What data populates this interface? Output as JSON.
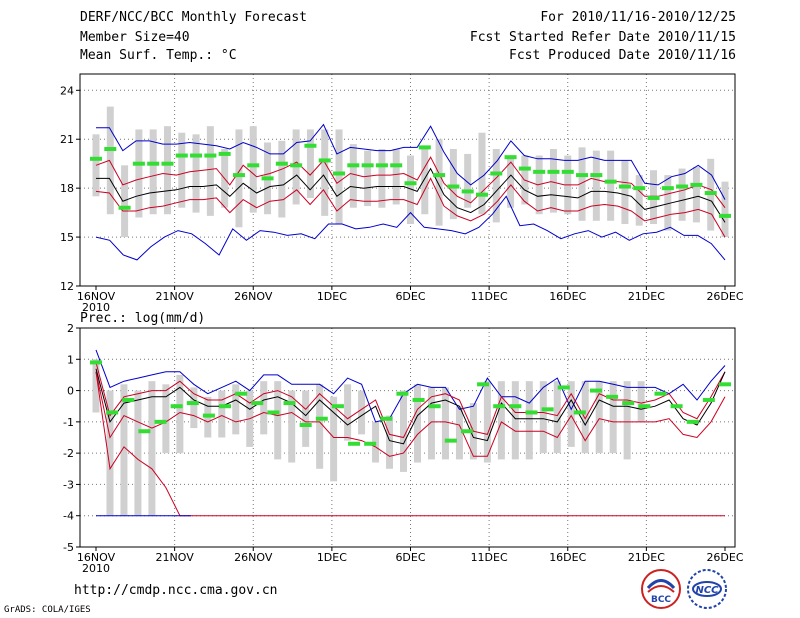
{
  "header": {
    "title": "DERF/NCC/BCC Monthly Forecast",
    "member": "Member Size=40",
    "variable": "Mean Surf. Temp.: °C",
    "period": "For 2010/11/16-2010/12/25",
    "refer": "Fcst Started Refer Date 2010/11/15",
    "produced": "Fcst Produced Date 2010/11/16"
  },
  "footer": {
    "url": "http://cmdp.ncc.cma.gov.cn",
    "credit": "GrADS: COLA/IGES",
    "logo1": "BCC",
    "logo2": "NCC"
  },
  "colors": {
    "max": "#0000cc",
    "upper": "#cc0022",
    "mean": "#000000",
    "bar": "#d0d0d0",
    "median": "#33dd33",
    "grid": "#777777"
  },
  "chart_data": [
    {
      "type": "line",
      "title": "Mean Surf. Temp.: °C",
      "ylim": [
        12,
        25
      ],
      "yticks": [
        12,
        15,
        18,
        21,
        24
      ],
      "xticks": [
        "16NOV",
        "21NOV",
        "26NOV",
        "1DEC",
        "6DEC",
        "11DEC",
        "16DEC",
        "21DEC",
        "26DEC"
      ],
      "xtick_year": "2010",
      "days": 40,
      "series": [
        {
          "name": "max",
          "values": [
            21.7,
            21.7,
            20.3,
            20.9,
            20.9,
            20.7,
            20.7,
            20.8,
            20.7,
            20.6,
            20.4,
            20.8,
            20.5,
            20.1,
            20.1,
            20.8,
            20.9,
            21.9,
            20.1,
            20.5,
            20.4,
            20.3,
            20.3,
            20.5,
            20.5,
            21.8,
            20.2,
            18.9,
            18.2,
            18.8,
            19.7,
            20.9,
            20.0,
            19.8,
            19.8,
            19.7,
            19.7,
            19.9,
            19.7,
            19.7,
            19.7,
            18.3,
            18.2,
            18.7,
            18.9,
            19.4,
            18.8,
            17.3
          ]
        },
        {
          "name": "max_member",
          "values": [
            15.0,
            14.8,
            13.9,
            13.6,
            14.4,
            15.0,
            15.4,
            15.2,
            14.6,
            13.9,
            15.5,
            14.8,
            15.4,
            15.3,
            15.1,
            15.2,
            14.9,
            15.8,
            15.8,
            15.5,
            15.6,
            15.8,
            15.6,
            16.5,
            15.6,
            15.5,
            15.4,
            15.2,
            15.6,
            16.4,
            17.5,
            15.7,
            15.8,
            15.4,
            14.9,
            15.2,
            15.4,
            15.0,
            15.3,
            14.8,
            15.2,
            15.3,
            15.6,
            15.1,
            15.1,
            14.6,
            13.6
          ]
        },
        {
          "name": "upper",
          "values": [
            19.4,
            19.7,
            18.2,
            18.5,
            18.7,
            18.9,
            18.8,
            19.0,
            19.1,
            19.2,
            18.2,
            19.4,
            18.7,
            18.9,
            19.2,
            19.6,
            18.8,
            19.7,
            18.3,
            18.9,
            18.7,
            18.8,
            18.8,
            18.9,
            18.5,
            19.9,
            18.3,
            17.5,
            17.1,
            17.9,
            18.7,
            19.6,
            18.5,
            18.2,
            18.4,
            18.2,
            18.2,
            18.6,
            18.4,
            18.4,
            18.3,
            17.5,
            17.5,
            17.7,
            17.9,
            18.2,
            17.9,
            16.8
          ]
        },
        {
          "name": "mean",
          "values": [
            18.6,
            18.6,
            17.2,
            17.5,
            17.7,
            17.8,
            17.9,
            18.1,
            18.1,
            18.2,
            17.5,
            18.3,
            17.7,
            18.1,
            18.2,
            18.8,
            17.9,
            18.8,
            17.5,
            18.1,
            18.0,
            18.1,
            18.1,
            18.1,
            17.8,
            19.2,
            17.6,
            16.8,
            16.5,
            17.0,
            17.9,
            18.8,
            17.9,
            17.5,
            17.6,
            17.5,
            17.4,
            17.8,
            17.8,
            17.7,
            17.5,
            16.7,
            16.9,
            17.1,
            17.3,
            17.5,
            17.2,
            15.9
          ]
        },
        {
          "name": "lower",
          "values": [
            17.8,
            17.7,
            16.6,
            16.6,
            16.8,
            16.9,
            17.1,
            17.3,
            17.3,
            17.4,
            16.5,
            17.3,
            16.8,
            17.2,
            17.3,
            17.9,
            17.0,
            17.9,
            16.6,
            17.3,
            17.2,
            17.2,
            17.3,
            17.3,
            17.0,
            18.6,
            16.9,
            16.3,
            16.0,
            16.4,
            17.2,
            18.2,
            17.2,
            16.6,
            16.8,
            16.6,
            16.6,
            16.9,
            17.0,
            16.9,
            16.6,
            16.0,
            16.2,
            16.4,
            16.5,
            16.7,
            16.4,
            15.0
          ]
        },
        {
          "name": "median",
          "values": [
            19.8,
            20.4,
            16.8,
            19.5,
            19.5,
            19.5,
            20.0,
            20.0,
            20.0,
            20.1,
            18.8,
            19.4,
            18.6,
            19.5,
            19.4,
            20.6,
            19.7,
            18.9,
            19.4,
            19.4,
            19.4,
            19.4,
            18.3,
            20.5,
            18.8,
            18.1,
            17.8,
            17.6,
            18.9,
            19.9,
            19.2,
            19.0,
            19.0,
            19.0,
            18.8,
            18.8,
            18.4,
            18.1,
            18.0,
            17.4,
            18.0,
            18.1,
            18.2,
            17.7,
            16.3
          ]
        },
        {
          "name": "bar_top",
          "values": [
            21.3,
            23.0,
            19.4,
            21.6,
            21.6,
            21.8,
            21.4,
            21.3,
            21.8,
            20.4,
            21.6,
            21.8,
            20.8,
            20.9,
            21.6,
            21.6,
            21.6,
            21.6,
            20.7,
            20.3,
            20.4,
            20.4,
            20.0,
            20.4,
            21.0,
            20.4,
            20.1,
            21.4,
            20.4,
            19.9,
            20.0,
            20.0,
            20.4,
            20.0,
            20.5,
            20.3,
            20.3,
            19.7,
            18.8,
            19.1,
            18.8,
            19.2,
            19.3,
            19.8,
            18.4
          ]
        },
        {
          "name": "bar_bottom",
          "values": [
            17.5,
            16.4,
            15.0,
            16.2,
            16.4,
            16.4,
            16.8,
            16.5,
            16.3,
            16.8,
            15.6,
            16.5,
            16.4,
            16.2,
            17.0,
            17.4,
            16.3,
            15.8,
            16.8,
            16.9,
            16.8,
            17.0,
            15.8,
            16.4,
            15.7,
            16.1,
            16.8,
            16.4,
            15.9,
            16.8,
            17.0,
            16.4,
            16.5,
            16.4,
            16.0,
            16.0,
            16.0,
            15.8,
            15.7,
            15.8,
            15.4,
            16.0,
            15.9,
            15.4,
            15.0
          ]
        }
      ]
    },
    {
      "type": "line",
      "title": "Prec.: log(mm/d)",
      "ylim": [
        -5,
        2
      ],
      "yticks": [
        -5,
        -4,
        -3,
        -2,
        -1,
        0,
        1,
        2
      ],
      "xticks": [
        "16NOV",
        "21NOV",
        "26NOV",
        "1DEC",
        "6DEC",
        "11DEC",
        "16DEC",
        "21DEC",
        "26DEC"
      ],
      "xtick_year": "2010",
      "days": 40,
      "series": [
        {
          "name": "max",
          "values": [
            1.3,
            0.1,
            0.3,
            0.4,
            0.5,
            0.6,
            0.6,
            0.2,
            -0.1,
            0.1,
            0.3,
            0.0,
            0.5,
            0.5,
            0.2,
            0.2,
            0.2,
            -0.1,
            0.4,
            0.2,
            -1.0,
            -0.9,
            -0.1,
            0.2,
            0.1,
            0.1,
            -0.6,
            -0.5,
            0.4,
            -0.2,
            -0.2,
            -0.4,
            0.1,
            0.4,
            -0.6,
            0.3,
            0.3,
            0.2,
            0.1,
            0.1,
            0.1,
            -0.1,
            0.2,
            -0.3,
            0.3,
            0.8
          ]
        },
        {
          "name": "mean",
          "values": [
            0.7,
            -1.0,
            -0.4,
            -0.3,
            -0.2,
            -0.2,
            0.1,
            -0.3,
            -0.5,
            -0.5,
            -0.3,
            -0.6,
            -0.3,
            -0.2,
            -0.4,
            -0.8,
            -0.3,
            -0.7,
            -1.1,
            -0.8,
            -0.5,
            -1.6,
            -1.7,
            -0.8,
            -0.4,
            -0.3,
            -0.5,
            -1.5,
            -1.6,
            -0.4,
            -0.9,
            -0.9,
            -0.9,
            -1.0,
            -0.3,
            -1.1,
            -0.3,
            -0.5,
            -0.5,
            -0.6,
            -0.5,
            -0.3,
            -0.9,
            -1.1,
            -0.4,
            0.6
          ]
        },
        {
          "name": "upper",
          "values": [
            0.9,
            -0.8,
            -0.2,
            -0.1,
            0.0,
            0.0,
            0.3,
            -0.1,
            -0.3,
            -0.3,
            -0.1,
            -0.4,
            -0.1,
            0.0,
            -0.2,
            -0.6,
            -0.1,
            -0.5,
            -0.9,
            -0.6,
            -0.3,
            -1.4,
            -1.5,
            -0.6,
            -0.2,
            -0.1,
            -0.3,
            -1.3,
            -1.4,
            -0.2,
            -0.7,
            -0.7,
            -0.7,
            -0.8,
            -0.1,
            -0.9,
            -0.1,
            -0.3,
            -0.3,
            -0.4,
            -0.3,
            -0.1,
            -0.7,
            -0.9,
            -0.2,
            0.6
          ]
        },
        {
          "name": "lower",
          "values": [
            0.6,
            -1.5,
            -0.8,
            -1.0,
            -1.2,
            -1.0,
            -0.7,
            -0.8,
            -1.0,
            -0.8,
            -1.0,
            -0.9,
            -0.7,
            -0.8,
            -0.7,
            -1.0,
            -1.0,
            -1.5,
            -1.5,
            -1.6,
            -1.8,
            -2.1,
            -2.0,
            -1.4,
            -1.0,
            -1.0,
            -1.1,
            -2.1,
            -2.1,
            -1.0,
            -1.3,
            -1.3,
            -1.3,
            -1.5,
            -0.8,
            -1.6,
            -0.9,
            -1.0,
            -1.0,
            -1.0,
            -1.0,
            -0.9,
            -1.4,
            -1.5,
            -1.0,
            -0.2
          ]
        },
        {
          "name": "min",
          "values": [
            0.6,
            -2.5,
            -1.8,
            -2.2,
            -2.5,
            -3.1,
            -4.0,
            -4.0,
            -4.0,
            -4.0,
            -4.0,
            -4.0,
            -4.0,
            -4.0,
            -4.0,
            -4.0,
            -4.0,
            -4.0,
            -4.0,
            -4.0,
            -4.0,
            -4.0,
            -4.0,
            -4.0,
            -4.0,
            -4.0,
            -4.0,
            -4.0,
            -4.0,
            -4.0,
            -4.0,
            -4.0,
            -4.0,
            -4.0,
            -4.0,
            -4.0,
            -4.0,
            -4.0,
            -4.0,
            -4.0,
            -4.0,
            -4.0,
            -4.0,
            -4.0,
            -4.0,
            -4.0
          ]
        },
        {
          "name": "floor",
          "values": [
            -4.0,
            -4.0
          ]
        },
        {
          "name": "median",
          "values": [
            0.9,
            -0.7,
            -0.3,
            -1.3,
            -1.0,
            -0.5,
            -0.4,
            -0.8,
            -0.5,
            -0.1,
            -0.4,
            -0.7,
            -0.4,
            -1.1,
            -0.9,
            -0.5,
            -1.7,
            -1.7,
            -0.9,
            -0.1,
            -0.3,
            -0.5,
            -1.6,
            -1.3,
            0.2,
            -0.5,
            -0.5,
            -0.7,
            -0.6,
            0.1,
            -0.7,
            0.0,
            -0.2,
            -0.4,
            -0.5,
            -0.1,
            -0.5,
            -1.0,
            -0.3,
            0.2
          ]
        },
        {
          "name": "bar_top",
          "values": [
            1.0,
            0.0,
            0.2,
            0.0,
            0.3,
            0.2,
            0.5,
            0.1,
            -0.2,
            0.0,
            0.2,
            0.0,
            0.3,
            0.3,
            0.0,
            0.0,
            0.2,
            -0.2,
            0.2,
            0.0,
            -1.0,
            -0.8,
            0.0,
            0.2,
            0.1,
            0.1,
            -0.5,
            -0.4,
            0.3,
            0.3,
            0.3,
            0.3,
            0.3,
            0.3,
            0.3,
            0.3,
            0.3,
            0.3,
            0.3,
            0.3,
            0.3,
            0.3,
            0.3,
            0.1,
            0.3,
            0.8
          ]
        },
        {
          "name": "bar_bottom",
          "values": [
            -0.7,
            -4.0,
            -4.0,
            -4.0,
            -4.0,
            -2.0,
            -2.0,
            -1.2,
            -1.5,
            -1.5,
            -1.4,
            -1.8,
            -1.4,
            -2.2,
            -2.3,
            -1.8,
            -2.5,
            -2.9,
            -1.6,
            -1.4,
            -2.3,
            -2.5,
            -2.6,
            -2.3,
            -2.2,
            -2.2,
            -2.2,
            -2.2,
            -2.3,
            -2.2,
            -2.2,
            -2.2,
            -2.0,
            -2.0,
            -1.8,
            -2.0,
            -2.0,
            -2.0,
            -2.2,
            -1.0
          ]
        }
      ]
    }
  ]
}
